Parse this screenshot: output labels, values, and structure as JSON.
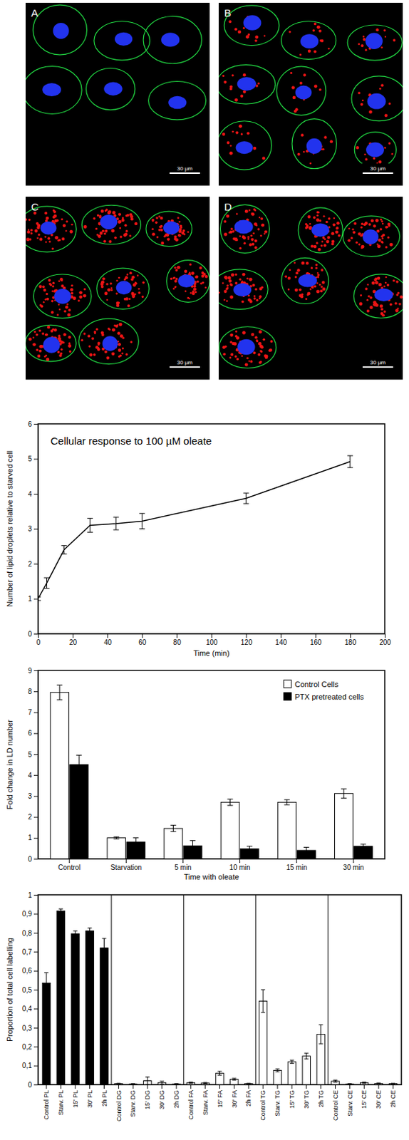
{
  "figure": {
    "panels": [
      {
        "label": "A",
        "scale_bar": "30 µm"
      },
      {
        "label": "B",
        "scale_bar": "30 µm"
      },
      {
        "label": "C",
        "scale_bar": "30 µm"
      },
      {
        "label": "D",
        "scale_bar": "30 µm"
      }
    ]
  },
  "chart_data": [
    {
      "type": "line",
      "title": "Cellular response to 100 µM oleate",
      "x_label": "Time (min)",
      "y_label": "Number of lipid droplets relative to starved cell",
      "x": [
        0,
        5,
        15,
        30,
        45,
        60,
        120,
        180
      ],
      "values": [
        1.0,
        1.45,
        2.4,
        3.1,
        3.15,
        3.22,
        3.87,
        4.92
      ],
      "errors": [
        0.05,
        0.15,
        0.12,
        0.2,
        0.18,
        0.22,
        0.15,
        0.17
      ],
      "color": "#000000",
      "line_style": "solid",
      "xlim": [
        0,
        200
      ],
      "xticks": [
        0,
        20,
        40,
        60,
        80,
        100,
        120,
        140,
        160,
        180,
        200
      ],
      "ylim": [
        0,
        6
      ],
      "yticks": [
        0,
        1,
        2,
        3,
        4,
        5,
        6
      ]
    },
    {
      "type": "bar",
      "x_label": "Time with oleate",
      "y_label": "Fold change in LD number",
      "categories": [
        "Control",
        "Starvation",
        "5 min",
        "10 min",
        "15 min",
        "30 min"
      ],
      "series": [
        {
          "name": "Control Cells",
          "color": "#ffffff",
          "values": [
            7.95,
            1.0,
            1.45,
            2.7,
            2.7,
            3.12
          ],
          "errors": [
            0.35,
            0.05,
            0.15,
            0.15,
            0.12,
            0.22
          ]
        },
        {
          "name": "PTX pretreated cells",
          "color": "#000000",
          "values": [
            4.5,
            0.8,
            0.62,
            0.48,
            0.4,
            0.6
          ],
          "errors": [
            0.45,
            0.2,
            0.25,
            0.12,
            0.15,
            0.1
          ]
        }
      ],
      "legend": "top-right",
      "ylim": [
        0,
        9
      ],
      "yticks": [
        0,
        1,
        2,
        3,
        4,
        5,
        6,
        7,
        8,
        9
      ]
    },
    {
      "type": "bar",
      "y_label": "Proportion of total cell labelling",
      "categories": [
        "Control PL",
        "Starv. PL",
        "15' PL",
        "30' PL",
        "2h PL",
        "Control DG",
        "Starv. DG",
        "15' DG",
        "30' DG",
        "2h DG",
        "Control FA",
        "Starv. FA",
        "15' FA",
        "30' FA",
        "2h FA",
        "Control TG",
        "Starv. TG",
        "15' TG",
        "30' TG",
        "2h TG",
        "Control CE",
        "Starv. CE",
        "15' CE",
        "30' CE",
        "2h CE"
      ],
      "values": [
        0.535,
        0.915,
        0.795,
        0.81,
        0.72,
        0.005,
        0.003,
        0.02,
        0.01,
        0.003,
        0.01,
        0.008,
        0.06,
        0.028,
        0.005,
        0.44,
        0.075,
        0.12,
        0.15,
        0.265,
        0.018,
        0.003,
        0.01,
        0.006,
        0.005
      ],
      "errors": [
        0.055,
        0.01,
        0.015,
        0.015,
        0.05,
        0.002,
        0.002,
        0.02,
        0.008,
        0.002,
        0.003,
        0.003,
        0.01,
        0.005,
        0.002,
        0.06,
        0.008,
        0.008,
        0.015,
        0.05,
        0.005,
        0.002,
        0.003,
        0.002,
        0.002
      ],
      "colors": [
        "#000000",
        "#000000",
        "#000000",
        "#000000",
        "#000000",
        "#ffffff",
        "#ffffff",
        "#ffffff",
        "#ffffff",
        "#ffffff",
        "#ffffff",
        "#ffffff",
        "#ffffff",
        "#ffffff",
        "#ffffff",
        "#ffffff",
        "#ffffff",
        "#ffffff",
        "#ffffff",
        "#ffffff",
        "#ffffff",
        "#ffffff",
        "#ffffff",
        "#ffffff",
        "#ffffff"
      ],
      "ylim": [
        0,
        1
      ],
      "yticks": [
        0,
        {
          "value": 0.1,
          "label": "0,1"
        },
        {
          "value": 0.2,
          "label": "0,2"
        },
        {
          "value": 0.3,
          "label": "0,3"
        },
        {
          "value": 0.4,
          "label": "0,4"
        },
        {
          "value": 0.5,
          "label": "0,5"
        },
        {
          "value": 0.6,
          "label": "0,6"
        },
        {
          "value": 0.7,
          "label": "0,7"
        },
        {
          "value": 0.8,
          "label": "0,8"
        },
        {
          "value": 0.9,
          "label": "0,9"
        },
        1
      ]
    }
  ]
}
